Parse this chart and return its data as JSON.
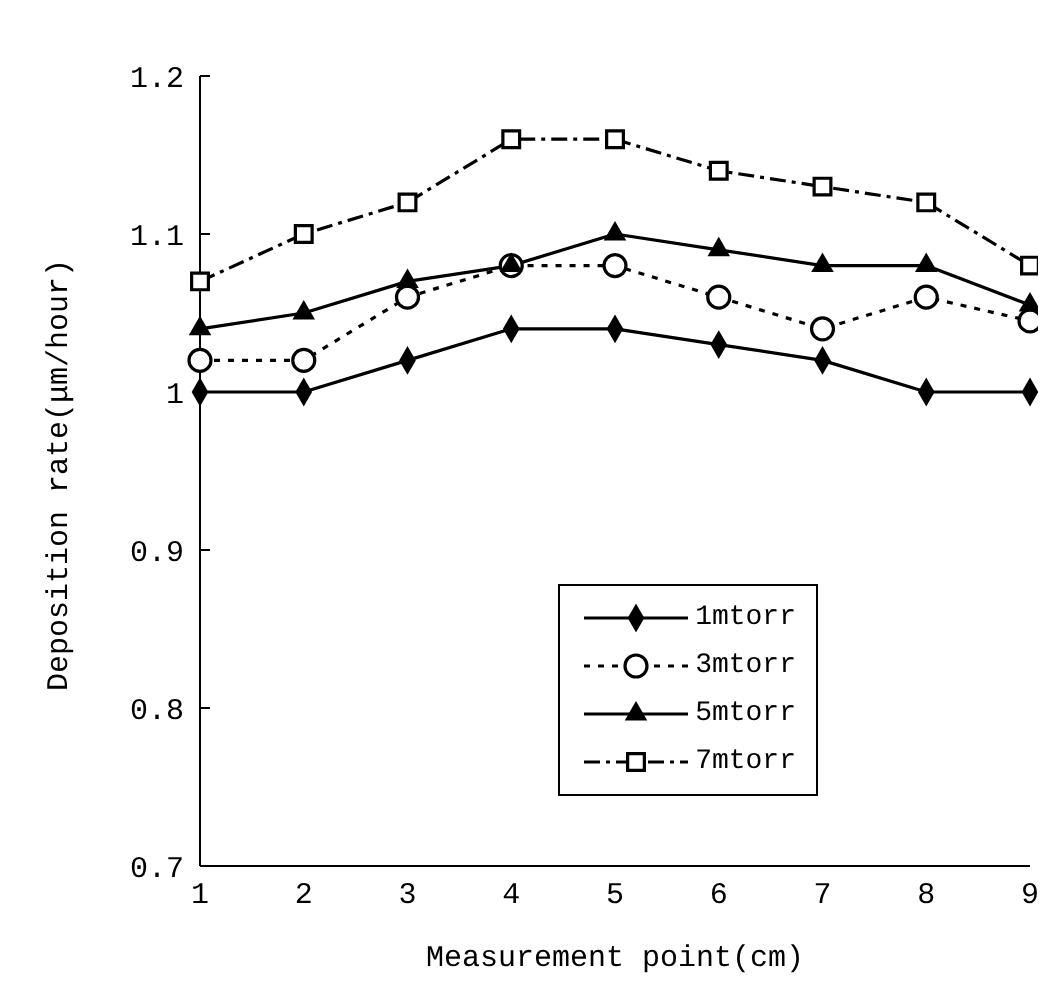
{
  "chart_data": {
    "type": "line",
    "xlabel": "Measurement point(cm)",
    "ylabel": "Deposition rate(μm/hour)",
    "x": [
      1,
      2,
      3,
      4,
      5,
      6,
      7,
      8,
      9
    ],
    "xlim": [
      1,
      9
    ],
    "xticks": [
      1,
      2,
      3,
      4,
      5,
      6,
      7,
      8,
      9
    ],
    "ylim": [
      0.7,
      1.2
    ],
    "yticks": [
      0.7,
      0.8,
      0.9,
      1,
      1.1,
      1.2
    ],
    "grid": false,
    "legend": "bottom right",
    "series": [
      {
        "name": "1mtorr",
        "color": "#000000",
        "marker": "diamond",
        "line_style": "solid",
        "values": [
          1.0,
          1.0,
          1.02,
          1.04,
          1.04,
          1.03,
          1.02,
          1.0,
          1.0
        ]
      },
      {
        "name": "3mtorr",
        "color": "#000000",
        "marker": "circle",
        "line_style": "dotted",
        "values": [
          1.02,
          1.02,
          1.06,
          1.08,
          1.08,
          1.06,
          1.04,
          1.06,
          1.045
        ]
      },
      {
        "name": "5mtorr",
        "color": "#000000",
        "marker": "triangle",
        "line_style": "solid",
        "values": [
          1.04,
          1.05,
          1.07,
          1.08,
          1.1,
          1.09,
          1.08,
          1.08,
          1.055
        ]
      },
      {
        "name": "7mtorr",
        "color": "#000000",
        "marker": "square",
        "line_style": "dashed",
        "values": [
          1.07,
          1.1,
          1.12,
          1.16,
          1.16,
          1.14,
          1.13,
          1.12,
          1.08
        ]
      }
    ]
  }
}
